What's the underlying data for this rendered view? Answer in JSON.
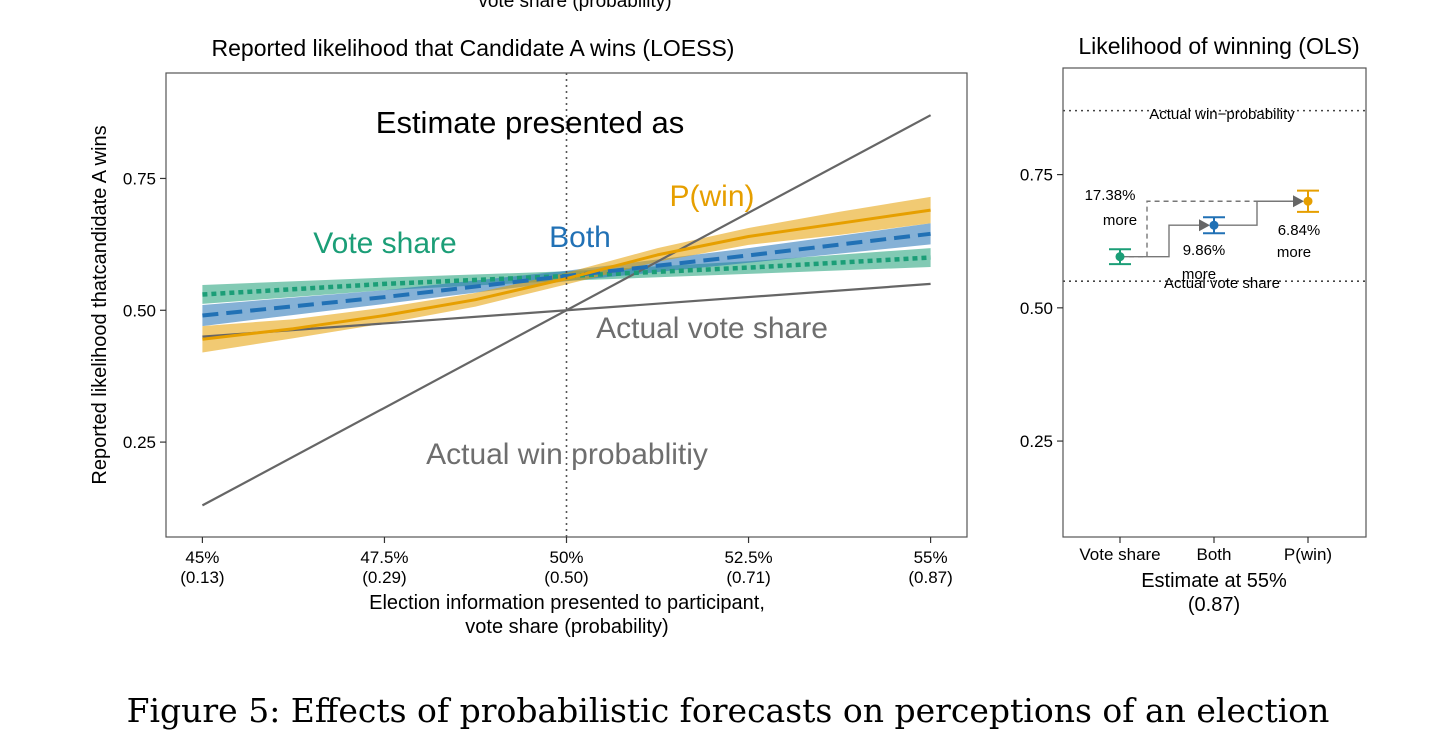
{
  "page": {
    "top_clip_text": "vote share (probability)",
    "caption": "Figure 5: Effects of probabilistic forecasts on perceptions of an election"
  },
  "colors": {
    "vote_share": "#1b9e77",
    "both": "#2171b5",
    "p_win": "#e69f00",
    "actual": "#666666",
    "text_gray": "#6e6e6e"
  },
  "chart_data": [
    {
      "type": "line",
      "title": "Reported likelihood that Candidate A wins (LOESS)",
      "xlabel": "Election information presented to participant,",
      "xlabel_line2": "vote share (probability)",
      "ylabel": "Reported likelihood thatcandidate A wins",
      "x_ticks": [
        45,
        47.5,
        50,
        52.5,
        55
      ],
      "x_tick_labels": [
        "45%",
        "47.5%",
        "50%",
        "52.5%",
        "55%"
      ],
      "x_tick_sublabels": [
        "(0.13)",
        "(0.29)",
        "(0.50)",
        "(0.71)",
        "(0.87)"
      ],
      "y_ticks": [
        0.25,
        0.5,
        0.75
      ],
      "y_tick_labels": [
        "0.25",
        "0.50",
        "0.75"
      ],
      "xlim": [
        44.5,
        55.5
      ],
      "ylim": [
        0.07,
        0.95
      ],
      "vline_x": 50,
      "legend_title": "Estimate presented as",
      "annotations": [
        "Actual vote share",
        "Actual win probablitiy"
      ],
      "series": [
        {
          "name": "Vote share",
          "key": "vote_share",
          "dash": "dotted",
          "x": [
            45,
            47.5,
            50,
            52.5,
            55
          ],
          "y": [
            0.53,
            0.55,
            0.565,
            0.581,
            0.6
          ],
          "lower": [
            0.512,
            0.538,
            0.556,
            0.569,
            0.582
          ],
          "upper": [
            0.548,
            0.562,
            0.574,
            0.593,
            0.618
          ]
        },
        {
          "name": "Both",
          "key": "both",
          "dash": "dashed",
          "x": [
            45,
            47.5,
            50,
            52.5,
            55
          ],
          "y": [
            0.49,
            0.525,
            0.565,
            0.604,
            0.645
          ],
          "lower": [
            0.47,
            0.512,
            0.555,
            0.59,
            0.625
          ],
          "upper": [
            0.51,
            0.538,
            0.575,
            0.618,
            0.665
          ]
        },
        {
          "name": "P(win)",
          "key": "p_win",
          "dash": "solid",
          "x": [
            45,
            46.25,
            47.5,
            48.75,
            50,
            51.25,
            52.5,
            53.75,
            55
          ],
          "y": [
            0.445,
            0.465,
            0.49,
            0.52,
            0.56,
            0.605,
            0.64,
            0.665,
            0.69
          ],
          "lower": [
            0.42,
            0.447,
            0.475,
            0.507,
            0.549,
            0.592,
            0.624,
            0.643,
            0.665
          ],
          "upper": [
            0.47,
            0.483,
            0.505,
            0.533,
            0.571,
            0.618,
            0.656,
            0.687,
            0.715
          ]
        },
        {
          "name": "Actual vote share",
          "key": "actual",
          "dash": "solid",
          "x": [
            45,
            55
          ],
          "y": [
            0.45,
            0.55
          ]
        },
        {
          "name": "Actual win probablitiy",
          "key": "actual",
          "dash": "solid",
          "x": [
            45,
            55
          ],
          "y": [
            0.13,
            0.87
          ]
        }
      ]
    },
    {
      "type": "scatter",
      "title": "Likelihood of winning (OLS)",
      "xlabel": "Estimate at 55%",
      "xlabel_line2": "(0.87)",
      "categories": [
        "Vote share",
        "Both",
        "P(win)"
      ],
      "category_colors": [
        "vote_share",
        "both",
        "p_win"
      ],
      "values": [
        0.596,
        0.655,
        0.7
      ],
      "ci_lower": [
        0.582,
        0.64,
        0.68
      ],
      "ci_upper": [
        0.61,
        0.67,
        0.72
      ],
      "y_ticks": [
        0.25,
        0.5,
        0.75
      ],
      "y_tick_labels": [
        "0.25",
        "0.50",
        "0.75"
      ],
      "ylim": [
        0.07,
        0.95
      ],
      "reference_lines": [
        {
          "label": "Actual win−probability",
          "y": 0.87
        },
        {
          "label": "Actual vote share",
          "y": 0.55
        }
      ],
      "annotations": [
        {
          "line1": "17.38%",
          "line2": "more"
        },
        {
          "line1": "9.86%",
          "line2": "more"
        },
        {
          "line1": "6.84%",
          "line2": "more"
        }
      ]
    }
  ]
}
